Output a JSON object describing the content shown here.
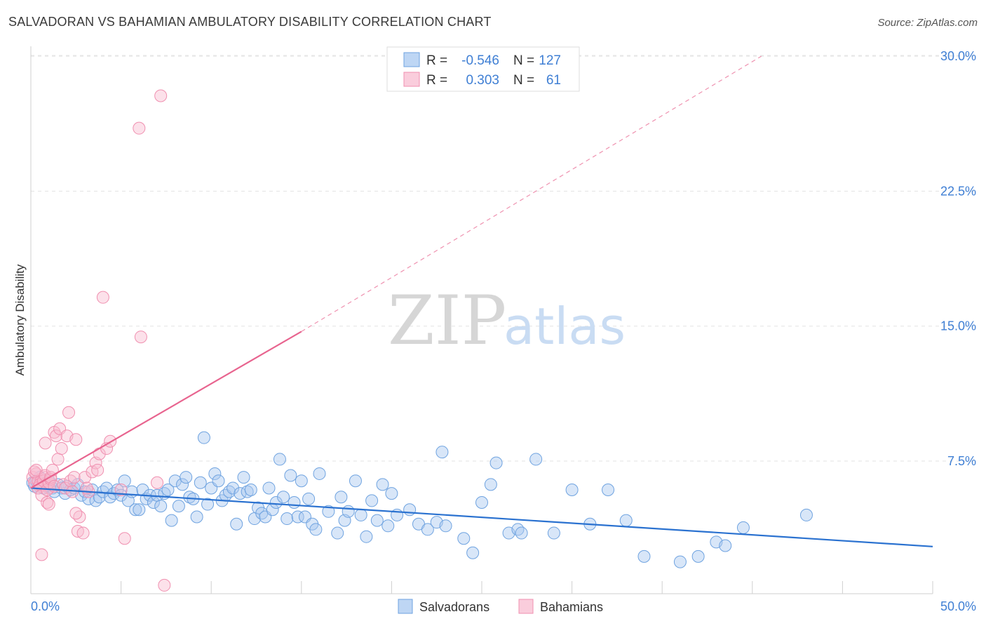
{
  "header": {
    "title": "SALVADORAN VS BAHAMIAN AMBULATORY DISABILITY CORRELATION CHART",
    "source": "Source: ZipAtlas.com"
  },
  "watermark": {
    "zip": "ZIP",
    "atlas": "atlas"
  },
  "legend": {
    "rows": [
      {
        "r_label": "R =",
        "r_value": "-0.546",
        "n_label": "N =",
        "n_value": "127",
        "color": "#6fa3e0"
      },
      {
        "r_label": "R =",
        "r_value": "0.303",
        "n_label": "N =",
        "n_value": "61",
        "color": "#f090b0"
      }
    ]
  },
  "bottom_legend": [
    {
      "label": "Salvadorans",
      "color": "#6fa3e0"
    },
    {
      "label": "Bahamians",
      "color": "#f090b0"
    }
  ],
  "colors": {
    "blue_fill": "#a8c8f0",
    "blue_stroke": "#6fa3e0",
    "blue_line": "#2b72d0",
    "pink_fill": "#f8bcd0",
    "pink_stroke": "#f090b0",
    "pink_line": "#e8648f",
    "tick_text": "#3f7fd4"
  },
  "chart_data": {
    "type": "scatter",
    "title": "SALVADORAN VS BAHAMIAN AMBULATORY DISABILITY CORRELATION CHART",
    "xlabel": "",
    "ylabel": "Ambulatory Disability",
    "xlim": [
      0,
      50
    ],
    "ylim": [
      0,
      31
    ],
    "x_tick_labels": [
      "0.0%",
      "50.0%"
    ],
    "y_ticks": [
      7.5,
      15.0,
      22.5,
      30.0
    ],
    "y_tick_labels": [
      "7.5%",
      "15.0%",
      "22.5%",
      "30.0%"
    ],
    "grid": true,
    "series": [
      {
        "name": "Salvadorans",
        "r": -0.546,
        "n": 127,
        "trend": {
          "x": [
            0,
            50
          ],
          "y": [
            6.0,
            2.75
          ],
          "style": "solid"
        },
        "points": [
          [
            0.1,
            6.3
          ],
          [
            0.2,
            6.1
          ],
          [
            0.3,
            6.4
          ],
          [
            0.4,
            6.0
          ],
          [
            0.5,
            6.6
          ],
          [
            0.6,
            6.2
          ],
          [
            0.7,
            6.0
          ],
          [
            0.8,
            6.3
          ],
          [
            0.9,
            6.1
          ],
          [
            1.0,
            6.4
          ],
          [
            1.2,
            6.0
          ],
          [
            1.3,
            5.8
          ],
          [
            1.5,
            6.2
          ],
          [
            1.7,
            6.0
          ],
          [
            1.9,
            5.7
          ],
          [
            2.0,
            6.1
          ],
          [
            2.2,
            5.9
          ],
          [
            2.4,
            6.0
          ],
          [
            2.6,
            6.2
          ],
          [
            2.8,
            5.6
          ],
          [
            3.0,
            5.8
          ],
          [
            3.2,
            5.4
          ],
          [
            3.4,
            5.9
          ],
          [
            3.6,
            5.3
          ],
          [
            3.8,
            5.5
          ],
          [
            4.0,
            5.8
          ],
          [
            4.2,
            6.0
          ],
          [
            4.4,
            5.5
          ],
          [
            4.6,
            5.7
          ],
          [
            4.8,
            5.9
          ],
          [
            5.0,
            5.6
          ],
          [
            5.2,
            6.4
          ],
          [
            5.4,
            5.3
          ],
          [
            5.6,
            5.8
          ],
          [
            5.8,
            4.8
          ],
          [
            6.0,
            4.8
          ],
          [
            6.2,
            5.9
          ],
          [
            6.4,
            5.4
          ],
          [
            6.6,
            5.6
          ],
          [
            6.8,
            5.2
          ],
          [
            7.0,
            5.6
          ],
          [
            7.2,
            5.0
          ],
          [
            7.4,
            5.7
          ],
          [
            7.6,
            5.9
          ],
          [
            7.8,
            4.2
          ],
          [
            8.0,
            6.4
          ],
          [
            8.2,
            5.0
          ],
          [
            8.4,
            6.2
          ],
          [
            8.6,
            6.6
          ],
          [
            8.8,
            5.5
          ],
          [
            9.0,
            5.4
          ],
          [
            9.2,
            4.4
          ],
          [
            9.4,
            6.3
          ],
          [
            9.6,
            8.8
          ],
          [
            9.8,
            5.1
          ],
          [
            10.0,
            6.0
          ],
          [
            10.2,
            6.8
          ],
          [
            10.4,
            6.4
          ],
          [
            10.6,
            5.3
          ],
          [
            10.8,
            5.6
          ],
          [
            11.0,
            5.8
          ],
          [
            11.2,
            6.0
          ],
          [
            11.4,
            4.0
          ],
          [
            11.6,
            5.7
          ],
          [
            11.8,
            6.6
          ],
          [
            12.0,
            5.8
          ],
          [
            12.2,
            5.9
          ],
          [
            12.4,
            4.3
          ],
          [
            12.6,
            4.9
          ],
          [
            12.8,
            4.6
          ],
          [
            13.0,
            4.4
          ],
          [
            13.2,
            6.0
          ],
          [
            13.4,
            4.8
          ],
          [
            13.6,
            5.2
          ],
          [
            13.8,
            7.6
          ],
          [
            14.0,
            5.5
          ],
          [
            14.2,
            4.3
          ],
          [
            14.4,
            6.7
          ],
          [
            14.6,
            5.2
          ],
          [
            14.8,
            4.4
          ],
          [
            15.0,
            6.4
          ],
          [
            15.2,
            4.4
          ],
          [
            15.4,
            5.4
          ],
          [
            15.6,
            4.0
          ],
          [
            15.8,
            3.7
          ],
          [
            16.0,
            6.8
          ],
          [
            16.5,
            4.7
          ],
          [
            17.0,
            3.5
          ],
          [
            17.2,
            5.5
          ],
          [
            17.4,
            4.2
          ],
          [
            17.6,
            4.7
          ],
          [
            18.0,
            6.4
          ],
          [
            18.3,
            4.5
          ],
          [
            18.6,
            3.3
          ],
          [
            18.9,
            5.3
          ],
          [
            19.2,
            4.2
          ],
          [
            19.5,
            6.2
          ],
          [
            19.8,
            3.9
          ],
          [
            20.0,
            5.7
          ],
          [
            20.3,
            4.5
          ],
          [
            21.0,
            4.8
          ],
          [
            21.5,
            4.0
          ],
          [
            22.0,
            3.7
          ],
          [
            22.5,
            4.1
          ],
          [
            22.8,
            8.0
          ],
          [
            23.0,
            3.9
          ],
          [
            24.0,
            3.2
          ],
          [
            24.5,
            2.4
          ],
          [
            25.0,
            5.2
          ],
          [
            25.5,
            6.2
          ],
          [
            25.8,
            7.4
          ],
          [
            26.5,
            3.5
          ],
          [
            27.0,
            3.7
          ],
          [
            27.2,
            3.5
          ],
          [
            28.0,
            7.6
          ],
          [
            29.0,
            3.5
          ],
          [
            30.0,
            5.9
          ],
          [
            31.0,
            4.0
          ],
          [
            32.0,
            5.9
          ],
          [
            33.0,
            4.2
          ],
          [
            34.0,
            2.2
          ],
          [
            36.0,
            1.9
          ],
          [
            37.0,
            2.2
          ],
          [
            38.0,
            3.0
          ],
          [
            38.5,
            2.8
          ],
          [
            39.5,
            3.8
          ],
          [
            43.0,
            4.5
          ]
        ]
      },
      {
        "name": "Bahamians",
        "r": 0.303,
        "n": 61,
        "trend": {
          "x": [
            0,
            15
          ],
          "y": [
            6.0,
            14.7
          ],
          "style": "solid",
          "extended_x": [
            15,
            40.5
          ],
          "extended_y": [
            14.7,
            30.0
          ],
          "extended_style": "dashed"
        },
        "points": [
          [
            0.1,
            6.6
          ],
          [
            0.2,
            6.3
          ],
          [
            0.3,
            6.8
          ],
          [
            0.4,
            6.4
          ],
          [
            0.5,
            6.1
          ],
          [
            0.6,
            6.5
          ],
          [
            0.7,
            6.2
          ],
          [
            0.8,
            6.6
          ],
          [
            0.9,
            6.3
          ],
          [
            1.0,
            6.0
          ],
          [
            0.2,
            6.9
          ],
          [
            0.3,
            7.0
          ],
          [
            0.4,
            6.0
          ],
          [
            0.5,
            6.2
          ],
          [
            0.6,
            5.6
          ],
          [
            0.7,
            6.4
          ],
          [
            0.8,
            6.7
          ],
          [
            0.9,
            5.9
          ],
          [
            1.0,
            6.3
          ],
          [
            1.1,
            6.5
          ],
          [
            0.8,
            8.5
          ],
          [
            0.9,
            5.2
          ],
          [
            1.0,
            5.1
          ],
          [
            1.1,
            6.6
          ],
          [
            1.2,
            7.0
          ],
          [
            1.3,
            6.1
          ],
          [
            1.3,
            9.1
          ],
          [
            1.4,
            8.9
          ],
          [
            1.5,
            7.6
          ],
          [
            1.6,
            9.3
          ],
          [
            1.7,
            8.2
          ],
          [
            1.8,
            6.2
          ],
          [
            1.9,
            6.0
          ],
          [
            2.0,
            8.9
          ],
          [
            2.1,
            10.2
          ],
          [
            2.2,
            6.4
          ],
          [
            2.3,
            5.8
          ],
          [
            2.4,
            6.6
          ],
          [
            2.5,
            8.7
          ],
          [
            2.6,
            3.6
          ],
          [
            2.7,
            4.4
          ],
          [
            2.9,
            3.5
          ],
          [
            3.0,
            6.6
          ],
          [
            3.2,
            5.8
          ],
          [
            3.4,
            6.9
          ],
          [
            3.6,
            7.4
          ],
          [
            3.7,
            7.0
          ],
          [
            3.8,
            7.9
          ],
          [
            4.0,
            16.6
          ],
          [
            4.2,
            8.2
          ],
          [
            4.4,
            8.6
          ],
          [
            5.0,
            5.9
          ],
          [
            5.2,
            3.2
          ],
          [
            6.0,
            26.0
          ],
          [
            6.1,
            14.4
          ],
          [
            7.0,
            6.3
          ],
          [
            7.2,
            27.8
          ],
          [
            7.4,
            0.6
          ],
          [
            0.6,
            2.3
          ],
          [
            2.5,
            4.6
          ],
          [
            3.1,
            6.0
          ]
        ]
      }
    ]
  }
}
